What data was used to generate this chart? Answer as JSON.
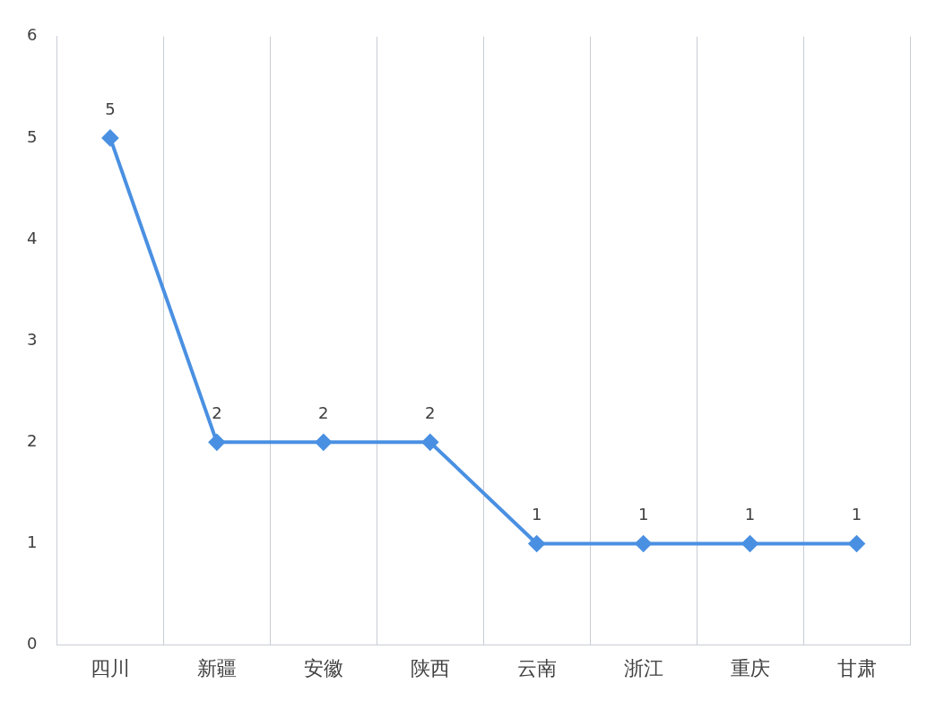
{
  "chart_data": {
    "type": "line",
    "categories": [
      "四川",
      "新疆",
      "安徽",
      "陕西",
      "云南",
      "浙江",
      "重庆",
      "甘肃"
    ],
    "series": [
      {
        "color": "#4a90e2",
        "values": [
          5,
          2,
          2,
          2,
          1,
          1,
          1,
          1
        ]
      }
    ],
    "ylim": [
      0,
      6
    ],
    "yticks": [
      0,
      1,
      2,
      3,
      4,
      5,
      6
    ],
    "grid": "x",
    "legend": false,
    "marker": "diamond",
    "line_style": "solid",
    "data_labels": true
  }
}
